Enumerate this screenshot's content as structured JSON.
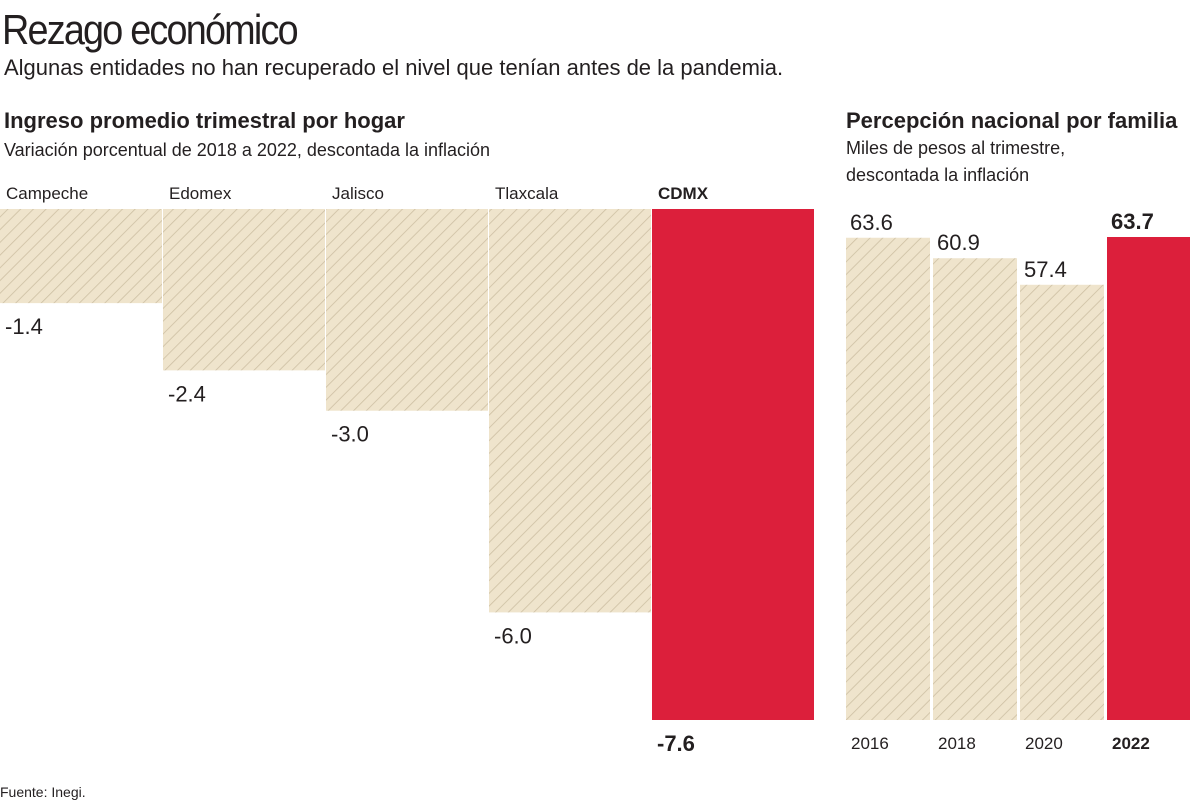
{
  "header": {
    "title": "Rezago económico",
    "subtitle": "Algunas entidades no han recuperado el nivel que tenían antes de la pandemia."
  },
  "footer": {
    "source": "Fuente: Inegi."
  },
  "colors": {
    "hatch_bg": "#efe4cc",
    "hatch_line": "#cdbfa3",
    "highlight": "#dc1f3b",
    "text": "#231f20"
  },
  "chart_data": [
    {
      "type": "bar",
      "title": "Ingreso promedio trimestral por hogar",
      "subtitle": "Variación porcentual de 2018 a 2022, descontada la inflación",
      "categories": [
        "Campeche",
        "Edomex",
        "Jalisco",
        "Tlaxcala",
        "CDMX"
      ],
      "values": [
        -1.4,
        -2.4,
        -3.0,
        -6.0,
        -7.6
      ],
      "value_labels": [
        "-1.4",
        "-2.4",
        "-3.0",
        "-6.0",
        "-7.6"
      ],
      "highlight": "CDMX",
      "ylim": [
        -7.6,
        0
      ],
      "grid": false
    },
    {
      "type": "bar",
      "title": "Percepción nacional por familia",
      "subtitle_lines": [
        "Miles de pesos al trimestre,",
        "descontada la inflación"
      ],
      "categories": [
        "2016",
        "2018",
        "2020",
        "2022"
      ],
      "values": [
        63.6,
        60.9,
        57.4,
        63.7
      ],
      "value_labels": [
        "63.6",
        "60.9",
        "57.4",
        "63.7"
      ],
      "highlight": "2022",
      "ylim": [
        0,
        63.7
      ],
      "grid": false
    }
  ]
}
